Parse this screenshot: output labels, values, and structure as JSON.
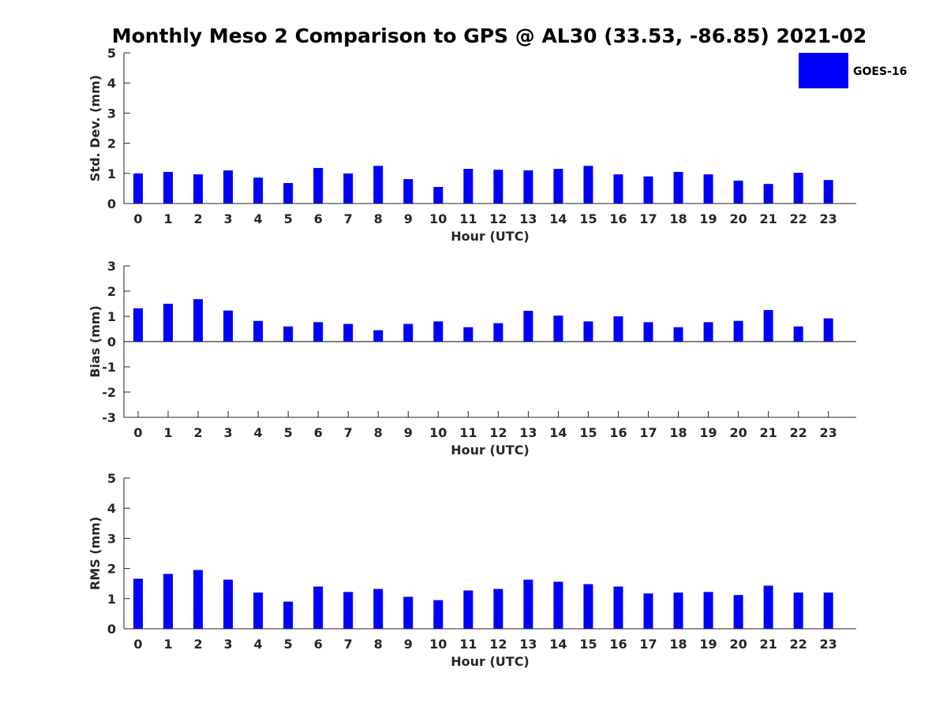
{
  "title": "Monthly Meso 2 Comparison to GPS @ AL30 (33.53, -86.85) 2021-02",
  "legend": {
    "label": "GOES-16",
    "color": "#0000ff"
  },
  "chart_data": [
    {
      "type": "bar",
      "xlabel": "Hour (UTC)",
      "ylabel": "Std. Dev. (mm)",
      "ylim": [
        0,
        5
      ],
      "yticks": [
        "0",
        "1",
        "2",
        "3",
        "4",
        "5"
      ],
      "categories": [
        "0",
        "1",
        "2",
        "3",
        "4",
        "5",
        "6",
        "7",
        "8",
        "9",
        "10",
        "11",
        "12",
        "13",
        "14",
        "15",
        "16",
        "17",
        "18",
        "19",
        "20",
        "21",
        "22",
        "23"
      ],
      "series": [
        {
          "name": "GOES-16",
          "color": "#0000ff",
          "values": [
            1.0,
            1.05,
            0.97,
            1.1,
            0.86,
            0.68,
            1.18,
            1.0,
            1.25,
            0.81,
            0.55,
            1.15,
            1.12,
            1.1,
            1.15,
            1.25,
            0.97,
            0.9,
            1.05,
            0.97,
            0.76,
            0.65,
            1.02,
            0.78
          ]
        }
      ],
      "grid": false,
      "legend_position": "top-right"
    },
    {
      "type": "bar",
      "xlabel": "Hour (UTC)",
      "ylabel": "Bias (mm)",
      "ylim": [
        -3,
        3
      ],
      "yticks": [
        "-3",
        "-2",
        "-1",
        "0",
        "1",
        "2",
        "3"
      ],
      "categories": [
        "0",
        "1",
        "2",
        "3",
        "4",
        "5",
        "6",
        "7",
        "8",
        "9",
        "10",
        "11",
        "12",
        "13",
        "14",
        "15",
        "16",
        "17",
        "18",
        "19",
        "20",
        "21",
        "22",
        "23"
      ],
      "series": [
        {
          "name": "GOES-16",
          "color": "#0000ff",
          "values": [
            1.32,
            1.5,
            1.68,
            1.23,
            0.82,
            0.6,
            0.77,
            0.7,
            0.45,
            0.7,
            0.8,
            0.57,
            0.73,
            1.22,
            1.03,
            0.8,
            1.0,
            0.77,
            0.57,
            0.77,
            0.82,
            1.25,
            0.6,
            0.92
          ]
        }
      ],
      "grid": false
    },
    {
      "type": "bar",
      "xlabel": "Hour (UTC)",
      "ylabel": "RMS (mm)",
      "ylim": [
        0,
        5
      ],
      "yticks": [
        "0",
        "1",
        "2",
        "3",
        "4",
        "5"
      ],
      "categories": [
        "0",
        "1",
        "2",
        "3",
        "4",
        "5",
        "6",
        "7",
        "8",
        "9",
        "10",
        "11",
        "12",
        "13",
        "14",
        "15",
        "16",
        "17",
        "18",
        "19",
        "20",
        "21",
        "22",
        "23"
      ],
      "series": [
        {
          "name": "GOES-16",
          "color": "#0000ff",
          "values": [
            1.66,
            1.82,
            1.95,
            1.63,
            1.2,
            0.9,
            1.4,
            1.22,
            1.32,
            1.06,
            0.95,
            1.27,
            1.32,
            1.63,
            1.56,
            1.48,
            1.4,
            1.17,
            1.2,
            1.22,
            1.12,
            1.43,
            1.2,
            1.2
          ]
        }
      ],
      "grid": false
    }
  ]
}
